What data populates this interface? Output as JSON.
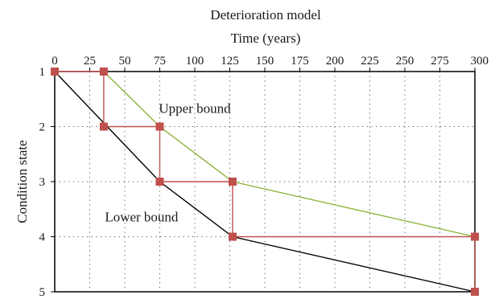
{
  "chart_data": {
    "type": "line",
    "title": "Deterioration  model",
    "xlabel": "Time (years)",
    "ylabel": "Condition state",
    "x_ticks": [
      0,
      25,
      50,
      75,
      100,
      125,
      150,
      175,
      200,
      225,
      250,
      275,
      300
    ],
    "y_ticks": [
      1,
      2,
      3,
      4,
      5
    ],
    "xlim": [
      0,
      300
    ],
    "ylim": [
      1,
      5
    ],
    "y_inverted": true,
    "x_axis_position": "top",
    "grid": "dotted",
    "series": [
      {
        "color": "#000000",
        "x": [
          0,
          75,
          127,
          300
        ],
        "y": [
          1,
          3,
          4,
          5
        ]
      },
      {
        "color": "#8db33a",
        "marker": "square",
        "x": [
          35,
          75,
          127,
          300
        ],
        "y": [
          1,
          2,
          3,
          4
        ]
      },
      {
        "color": "#c0504d",
        "marker": "square",
        "step": true,
        "x": [
          0,
          35,
          35,
          75,
          75,
          127,
          127,
          300,
          300
        ],
        "y": [
          1,
          1,
          2,
          2,
          3,
          3,
          4,
          4,
          5
        ]
      }
    ],
    "annotations": [
      {
        "text": "Upper bound",
        "x": 100,
        "y": 1.75
      },
      {
        "text": "Lower bound",
        "x": 62,
        "y": 3.72
      }
    ]
  }
}
